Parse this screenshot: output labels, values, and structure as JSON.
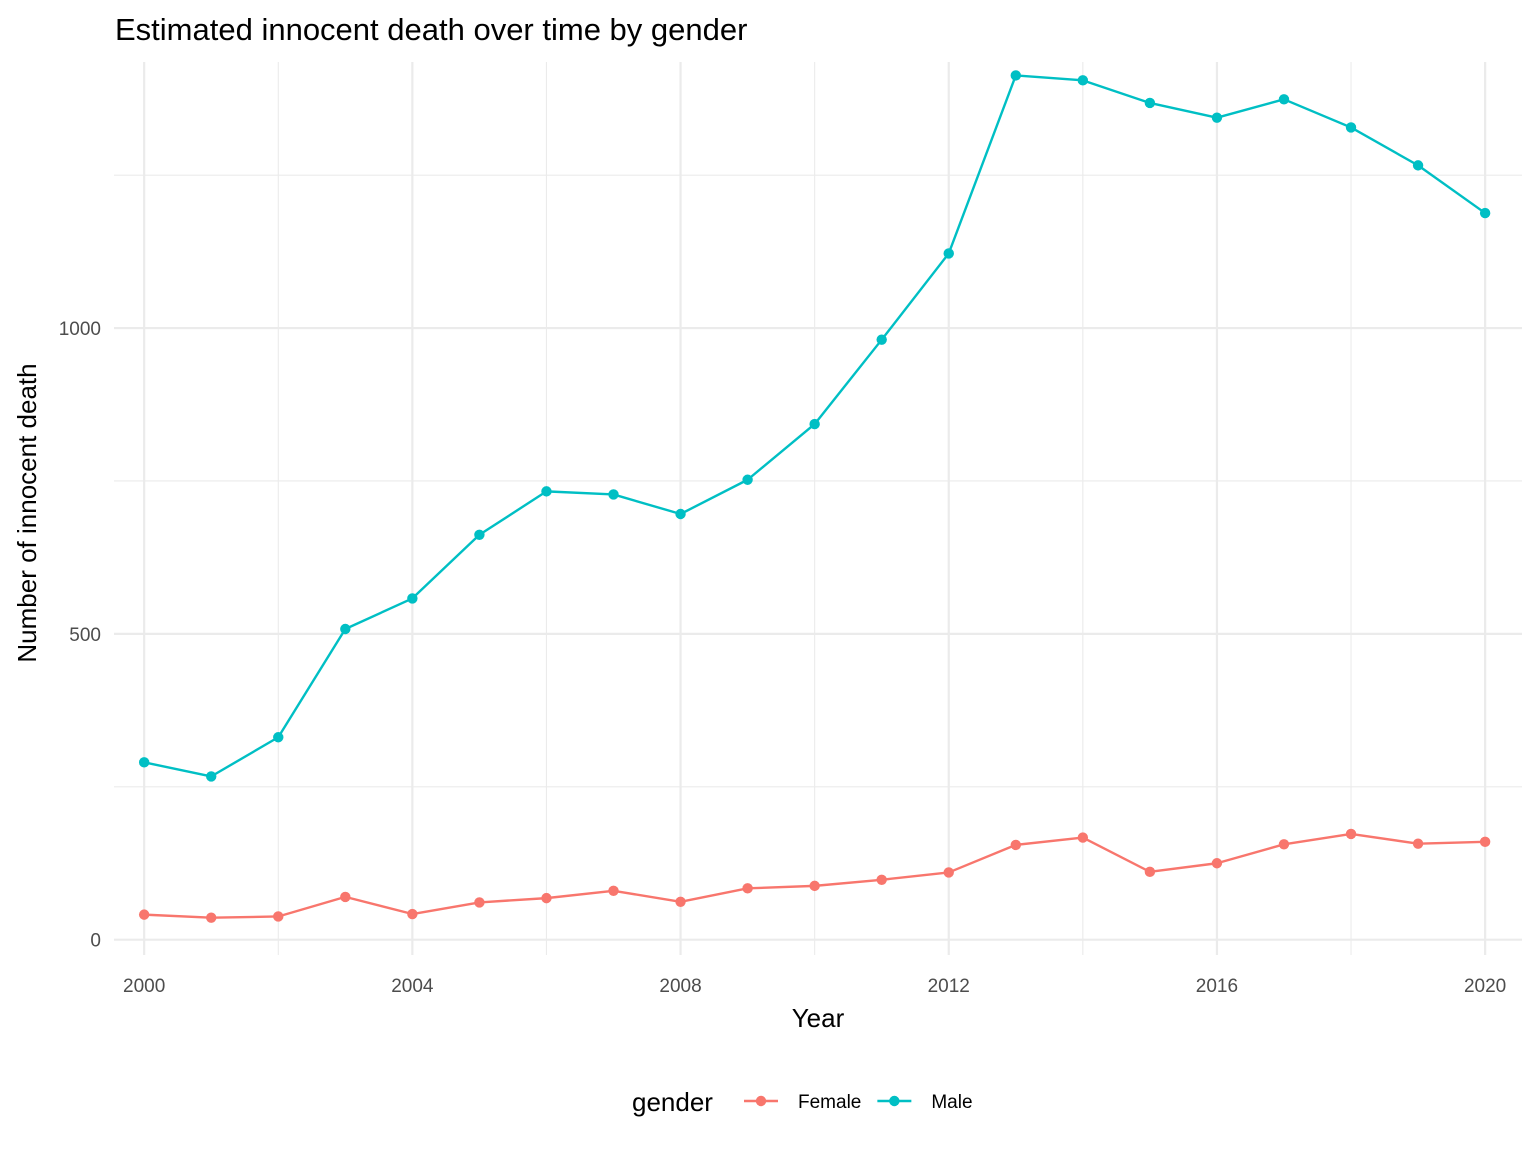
{
  "chart_data": {
    "type": "line",
    "title": "Estimated innocent death over time by gender",
    "xlabel": "Year",
    "ylabel": "Number of innocent death",
    "x": [
      2000,
      2001,
      2002,
      2003,
      2004,
      2005,
      2006,
      2007,
      2008,
      2009,
      2010,
      2011,
      2012,
      2013,
      2014,
      2015,
      2016,
      2017,
      2018,
      2019,
      2020
    ],
    "xlim": [
      1999.55,
      2020.55
    ],
    "ylim": [
      -25,
      1435
    ],
    "x_ticks": [
      2000,
      2004,
      2008,
      2012,
      2016,
      2020
    ],
    "x_tick_labels": [
      "2000",
      "2004",
      "2008",
      "2012",
      "2016",
      "2020"
    ],
    "y_ticks": [
      0,
      500,
      1000
    ],
    "y_tick_labels": [
      "0",
      "500",
      "1000"
    ],
    "y_minor_ticks": [
      250,
      750,
      1250
    ],
    "grid": true,
    "legend": {
      "title": "gender",
      "position": "bottom"
    },
    "series": [
      {
        "name": "Female",
        "color": "#F8766D",
        "values": [
          41,
          36,
          38,
          70,
          42,
          61,
          68,
          80,
          62,
          84,
          88,
          98,
          110,
          155,
          167,
          111,
          125,
          156,
          173,
          157,
          160
        ]
      },
      {
        "name": "Male",
        "color": "#00BFC4",
        "values": [
          290,
          267,
          331,
          508,
          558,
          662,
          733,
          728,
          696,
          752,
          843,
          981,
          1122,
          1413,
          1405,
          1368,
          1344,
          1374,
          1328,
          1266,
          1188
        ]
      }
    ]
  }
}
